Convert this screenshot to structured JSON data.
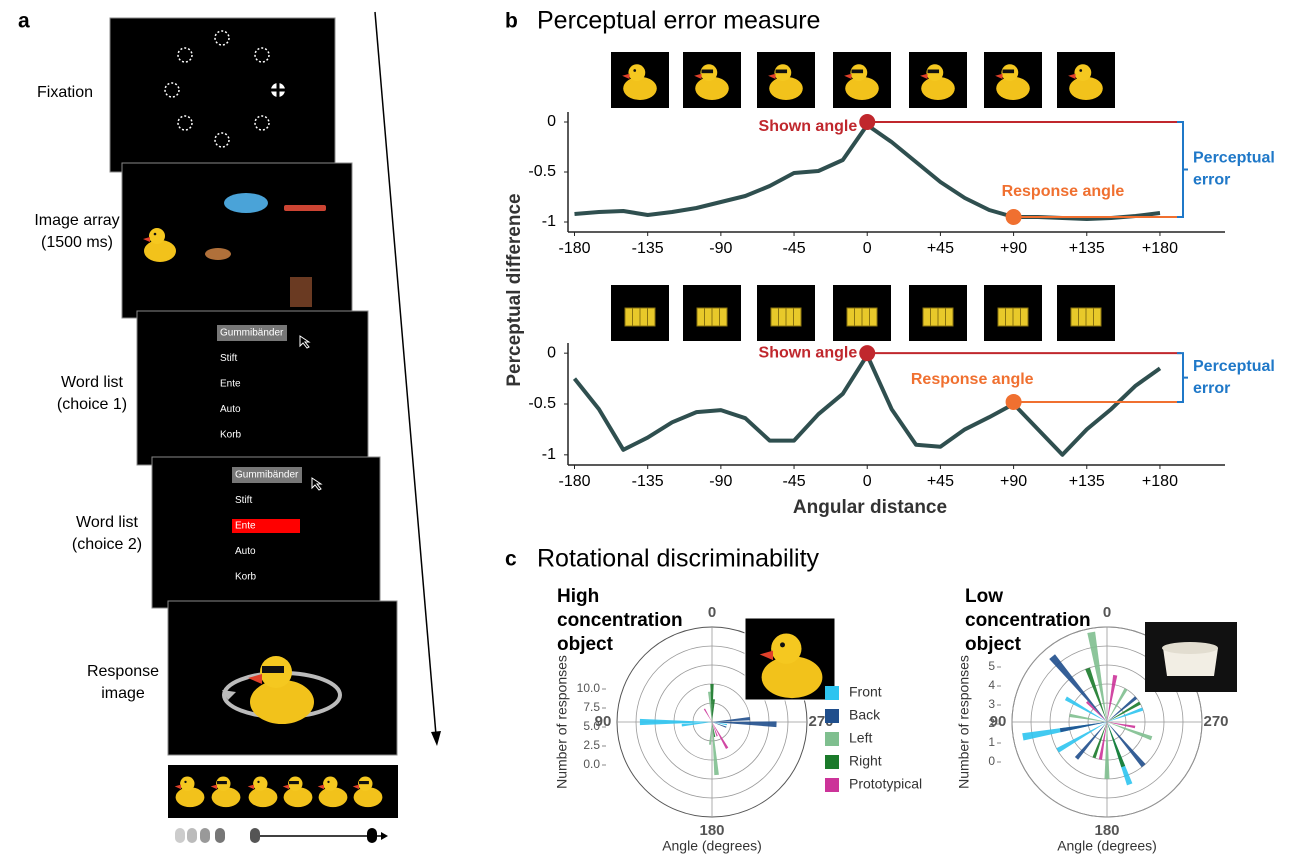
{
  "panel_labels": [
    "a",
    "b",
    "c"
  ],
  "panel_a": {
    "steps": [
      {
        "label": [
          "Fixation"
        ]
      },
      {
        "label": [
          "Image array",
          "(1500 ms)"
        ]
      },
      {
        "label": [
          "Word list",
          "(choice 1)"
        ]
      },
      {
        "label": [
          "Word list",
          "(choice 2)"
        ]
      },
      {
        "label": [
          "Response",
          "image"
        ]
      }
    ],
    "word_list": [
      "Gummibänder",
      "Stift",
      "Ente",
      "Auto",
      "Korb"
    ]
  },
  "panel_b": {
    "title": "Perceptual error measure"
  },
  "panel_c": {
    "title": "Rotational discriminability"
  },
  "chart_data": [
    {
      "type": "line",
      "ylabel": "Perceptual difference",
      "xlim": [
        -184,
        220
      ],
      "ylim": [
        -1.1,
        0.1
      ],
      "xticks": [
        -180,
        -135,
        -90,
        -45,
        0,
        {
          "value": 45,
          "label": "+45"
        },
        {
          "value": 90,
          "label": "+90"
        },
        {
          "value": 135,
          "label": "+135"
        },
        {
          "value": 180,
          "label": "+180"
        }
      ],
      "yticks": [
        0,
        -0.5,
        -1
      ],
      "x": [
        -180,
        -165,
        -150,
        -135,
        -120,
        -105,
        -90,
        -75,
        -60,
        -45,
        -30,
        -15,
        0,
        15,
        30,
        45,
        60,
        75,
        90,
        105,
        120,
        135,
        150,
        165,
        180
      ],
      "values": [
        -0.92,
        -0.9,
        -0.89,
        -0.93,
        -0.9,
        -0.86,
        -0.8,
        -0.74,
        -0.64,
        -0.51,
        -0.49,
        -0.38,
        -0.03,
        -0.2,
        -0.4,
        -0.6,
        -0.76,
        -0.88,
        -0.95,
        -0.95,
        -0.96,
        -0.97,
        -0.96,
        -0.94,
        -0.91
      ],
      "color": "#2f4f4f",
      "annotations": [
        {
          "text": "Shown angle",
          "x": 0,
          "y": 0,
          "color": "#c0272d"
        },
        {
          "text": "Response angle",
          "x": 90,
          "y": -0.95,
          "color": "#f07030"
        }
      ],
      "error_label": [
        "Perceptual",
        "error"
      ],
      "error_color": "#1f78c8"
    },
    {
      "type": "line",
      "xlabel": "Angular distance",
      "xlim": [
        -184,
        220
      ],
      "ylim": [
        -1.1,
        0.1
      ],
      "xticks": [
        -180,
        -135,
        -90,
        -45,
        0,
        {
          "value": 45,
          "label": "+45"
        },
        {
          "value": 90,
          "label": "+90"
        },
        {
          "value": 135,
          "label": "+135"
        },
        {
          "value": 180,
          "label": "+180"
        }
      ],
      "yticks": [
        0,
        -0.5,
        -1
      ],
      "x": [
        -180,
        -165,
        -150,
        -135,
        -120,
        -105,
        -90,
        -75,
        -60,
        -45,
        -30,
        -15,
        0,
        15,
        30,
        45,
        60,
        75,
        90,
        105,
        120,
        135,
        150,
        165,
        180
      ],
      "values": [
        -0.25,
        -0.55,
        -0.95,
        -0.83,
        -0.68,
        -0.58,
        -0.56,
        -0.64,
        -0.86,
        -0.86,
        -0.6,
        -0.4,
        -0.02,
        -0.55,
        -0.9,
        -0.92,
        -0.75,
        -0.63,
        -0.5,
        -0.75,
        -1.0,
        -0.75,
        -0.55,
        -0.32,
        -0.15
      ],
      "color": "#2f4f4f",
      "annotations": [
        {
          "text": "Shown angle",
          "x": 0,
          "y": 0,
          "color": "#c0272d"
        },
        {
          "text": "Response angle",
          "x": 90,
          "y": -0.48,
          "color": "#f07030"
        }
      ],
      "error_label": [
        "Perceptual",
        "error"
      ],
      "error_color": "#1f78c8"
    },
    {
      "type": "polar",
      "title": [
        "High",
        "concentration",
        "object"
      ],
      "ylabel": "Number of responses",
      "xlabel": "Angle (degrees)",
      "xlim": [
        0,
        360
      ],
      "xticks": [
        0,
        90,
        180,
        270
      ],
      "ylim": [
        0,
        12.5
      ],
      "yticks": [
        {
          "value": 0,
          "label": "0.0"
        },
        {
          "value": 2.5,
          "label": "2.5"
        },
        {
          "value": 5,
          "label": "5.0"
        },
        {
          "value": 7.5,
          "label": "7.5"
        },
        {
          "value": 10,
          "label": "10.0"
        }
      ],
      "legend": true,
      "series": [
        {
          "name": "Front",
          "color": "#2ec4f0",
          "x": [
            90,
            96,
            260
          ],
          "values": [
            9.5,
            4,
            2
          ]
        },
        {
          "name": "Back",
          "color": "#1f4e8c",
          "x": [
            268,
            275,
            250
          ],
          "values": [
            8.5,
            5,
            2
          ]
        },
        {
          "name": "Left",
          "color": "#7fbf8f",
          "x": [
            185,
            5,
            175
          ],
          "values": [
            7,
            4,
            3
          ]
        },
        {
          "name": "Right",
          "color": "#1a7a2a",
          "x": [
            0,
            355,
            190
          ],
          "values": [
            5,
            3,
            2
          ]
        },
        {
          "name": "Prototypical",
          "color": "#cc3399",
          "x": [
            210,
            30,
            200
          ],
          "values": [
            4,
            2,
            2
          ]
        }
      ]
    },
    {
      "type": "polar",
      "title": [
        "Low",
        "concentration",
        "object"
      ],
      "ylabel": "Number of responses",
      "xlabel": "Angle (degrees)",
      "xlim": [
        0,
        360
      ],
      "xticks": [
        0,
        90,
        180,
        270
      ],
      "ylim": [
        0,
        5
      ],
      "yticks": [
        0,
        1,
        2,
        3,
        4,
        5
      ],
      "legend": false,
      "series": [
        {
          "name": "Front",
          "color": "#2ec4f0",
          "x": [
            100,
            200,
            60,
            290,
            120
          ],
          "values": [
            4.5,
            3.5,
            2.5,
            2,
            3
          ]
        },
        {
          "name": "Back",
          "color": "#1f4e8c",
          "x": [
            40,
            220,
            140,
            310,
            100
          ],
          "values": [
            4.5,
            3,
            2.5,
            2,
            2.5
          ]
        },
        {
          "name": "Left",
          "color": "#7fbf8f",
          "x": [
            10,
            180,
            250,
            80,
            330
          ],
          "values": [
            4.8,
            3,
            2.5,
            2,
            2
          ]
        },
        {
          "name": "Right",
          "color": "#1a7a2a",
          "x": [
            20,
            200,
            300,
            160
          ],
          "values": [
            3,
            2.5,
            2,
            2
          ]
        },
        {
          "name": "Prototypical",
          "color": "#cc3399",
          "x": [
            350,
            170,
            45,
            260
          ],
          "values": [
            2.5,
            2,
            1.5,
            1.5
          ]
        }
      ]
    }
  ]
}
